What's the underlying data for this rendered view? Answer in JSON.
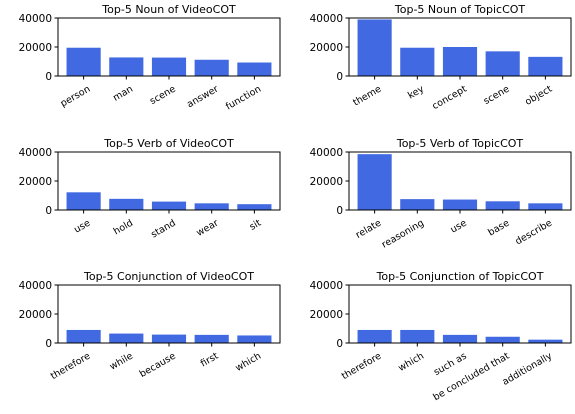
{
  "chart_data": [
    {
      "type": "bar",
      "title": "Top-5 Noun of VideoCOT",
      "categories": [
        "person",
        "man",
        "scene",
        "answer",
        "function"
      ],
      "values": [
        19500,
        12800,
        12700,
        11200,
        9300
      ],
      "ylim": [
        0,
        40000
      ],
      "yticks": [
        0,
        20000,
        40000
      ],
      "color": "#4169e1"
    },
    {
      "type": "bar",
      "title": "Top-5 Noun of TopicCOT",
      "categories": [
        "theme",
        "key",
        "concept",
        "scene",
        "object"
      ],
      "values": [
        39000,
        19500,
        20000,
        17000,
        13200
      ],
      "ylim": [
        0,
        40000
      ],
      "yticks": [
        0,
        20000,
        40000
      ],
      "color": "#4169e1"
    },
    {
      "type": "bar",
      "title": "Top-5 Verb of VideoCOT",
      "categories": [
        "use",
        "hold",
        "stand",
        "wear",
        "sit"
      ],
      "values": [
        12200,
        7700,
        5800,
        4600,
        4000
      ],
      "ylim": [
        0,
        40000
      ],
      "yticks": [
        0,
        20000,
        40000
      ],
      "color": "#4169e1"
    },
    {
      "type": "bar",
      "title": "Top-5 Verb of TopicCOT",
      "categories": [
        "relate",
        "reasoning",
        "use",
        "base",
        "describe"
      ],
      "values": [
        38500,
        7500,
        7200,
        6000,
        4600
      ],
      "ylim": [
        0,
        40000
      ],
      "yticks": [
        0,
        20000,
        40000
      ],
      "color": "#4169e1"
    },
    {
      "type": "bar",
      "title": "Top-5 Conjunction of VideoCOT",
      "categories": [
        "therefore",
        "while",
        "because",
        "first",
        "which"
      ],
      "values": [
        9000,
        6500,
        5800,
        5600,
        5200
      ],
      "ylim": [
        0,
        40000
      ],
      "yticks": [
        0,
        20000,
        40000
      ],
      "color": "#4169e1"
    },
    {
      "type": "bar",
      "title": "Top-5 Conjunction of TopicCOT",
      "categories": [
        "therefore",
        "which",
        "such as",
        "be concluded that",
        "additionally"
      ],
      "values": [
        9000,
        9000,
        5600,
        4300,
        2300
      ],
      "ylim": [
        0,
        40000
      ],
      "yticks": [
        0,
        20000,
        40000
      ],
      "color": "#4169e1"
    }
  ]
}
